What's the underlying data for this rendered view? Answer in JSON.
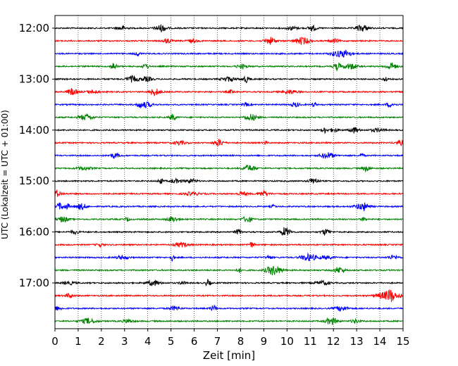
{
  "chart_data": {
    "type": "line",
    "title": "",
    "xlabel": "Zeit  [min]",
    "ylabel": "UTC (Lokalzeit = UTC + 01:00)",
    "xlim": [
      0,
      15
    ],
    "x_ticks": [
      0,
      1,
      2,
      3,
      4,
      5,
      6,
      7,
      8,
      9,
      10,
      11,
      12,
      13,
      14,
      15
    ],
    "y_tick_labels": [
      "12:00",
      "13:00",
      "14:00",
      "15:00",
      "16:00",
      "17:00"
    ],
    "trace_interval_min": 15,
    "grid": "vertical dotted",
    "color_cycle": [
      "#000000",
      "#ff0000",
      "#0000ff",
      "#008000"
    ],
    "series": [
      {
        "start": "12:00",
        "color": "#000000"
      },
      {
        "start": "12:15",
        "color": "#ff0000"
      },
      {
        "start": "12:30",
        "color": "#0000ff"
      },
      {
        "start": "12:45",
        "color": "#008000"
      },
      {
        "start": "13:00",
        "color": "#000000"
      },
      {
        "start": "13:15",
        "color": "#ff0000"
      },
      {
        "start": "13:30",
        "color": "#0000ff"
      },
      {
        "start": "13:45",
        "color": "#008000"
      },
      {
        "start": "14:00",
        "color": "#000000"
      },
      {
        "start": "14:15",
        "color": "#ff0000"
      },
      {
        "start": "14:30",
        "color": "#0000ff"
      },
      {
        "start": "14:45",
        "color": "#008000"
      },
      {
        "start": "15:00",
        "color": "#000000"
      },
      {
        "start": "15:15",
        "color": "#ff0000"
      },
      {
        "start": "15:30",
        "color": "#0000ff"
      },
      {
        "start": "15:45",
        "color": "#008000"
      },
      {
        "start": "16:00",
        "color": "#000000"
      },
      {
        "start": "16:15",
        "color": "#ff0000"
      },
      {
        "start": "16:30",
        "color": "#0000ff"
      },
      {
        "start": "16:45",
        "color": "#008000"
      },
      {
        "start": "17:00",
        "color": "#000000"
      },
      {
        "start": "17:15",
        "color": "#ff0000"
      },
      {
        "start": "17:30",
        "color": "#0000ff"
      },
      {
        "start": "17:45",
        "color": "#008000"
      }
    ]
  }
}
